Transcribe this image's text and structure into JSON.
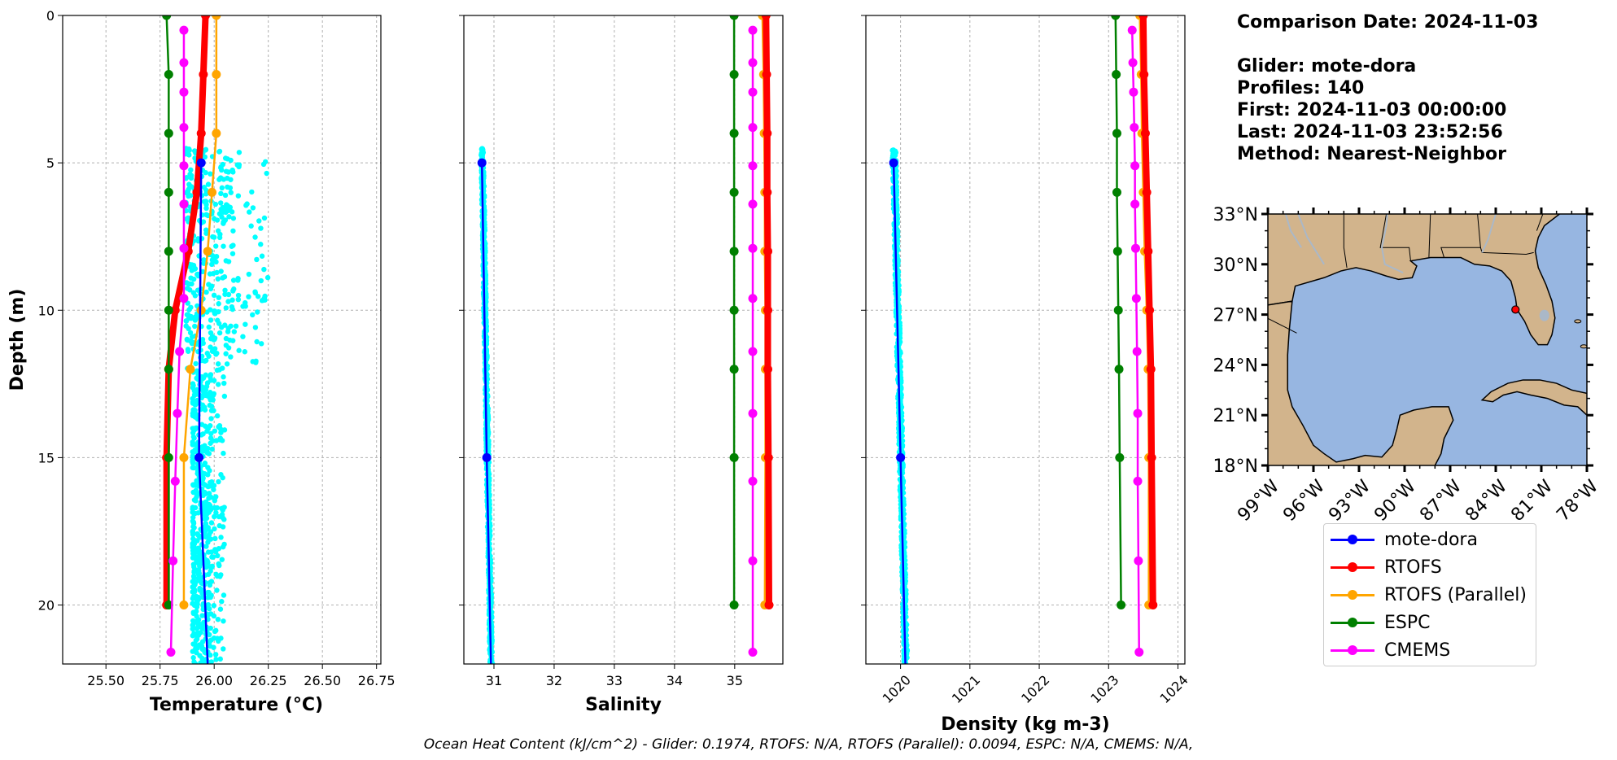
{
  "info": {
    "date": "Comparison Date: 2024-11-03",
    "glider": "Glider: mote-dora",
    "profiles": "Profiles: 140",
    "first": "First: 2024-11-03 00:00:00",
    "last": "Last: 2024-11-03 23:52:56",
    "method": "Method: Nearest-Neighbor"
  },
  "footer": "Ocean Heat Content (kJ/cm^2) - Glider: 0.1974,  RTOFS: N/A,  RTOFS (Parallel): 0.0094,  ESPC: N/A,  CMEMS: N/A,",
  "colors": {
    "glider": "#0000ff",
    "rtofs": "#ff0000",
    "rtofs_parallel": "#ffa500",
    "espc": "#008000",
    "cmems": "#ff00ff",
    "scatter": "#00ffff",
    "land": "#d2b48c",
    "ocean": "#97b6e1"
  },
  "legend": [
    {
      "name": "mote-dora",
      "color": "#0000ff"
    },
    {
      "name": "RTOFS",
      "color": "#ff0000"
    },
    {
      "name": "RTOFS (Parallel)",
      "color": "#ffa500"
    },
    {
      "name": "ESPC",
      "color": "#008000"
    },
    {
      "name": "CMEMS",
      "color": "#ff00ff"
    }
  ],
  "chart_data": [
    {
      "type": "line",
      "xlabel": "Temperature (°C)",
      "ylabel": "Depth (m)",
      "xlim": [
        25.3,
        26.77
      ],
      "ylim": [
        22,
        0
      ],
      "xticks": [
        "25.50",
        "25.75",
        "26.00",
        "26.25",
        "26.50",
        "26.75"
      ],
      "yticks": [
        "0",
        "5",
        "10",
        "15",
        "20"
      ],
      "grid": true,
      "series": [
        {
          "name": "mote-dora",
          "depth": [
            5,
            15,
            22
          ],
          "values": [
            25.94,
            25.93,
            25.97
          ]
        },
        {
          "name": "RTOFS",
          "depth": [
            0,
            2,
            4,
            6,
            8,
            10,
            12,
            15,
            20
          ],
          "values": [
            25.96,
            25.95,
            25.94,
            25.92,
            25.88,
            25.82,
            25.79,
            25.78,
            25.78
          ]
        },
        {
          "name": "RTOFS (Parallel)",
          "depth": [
            0,
            2,
            4,
            6,
            8,
            10,
            12,
            15,
            20
          ],
          "values": [
            26.01,
            26.01,
            26.01,
            25.99,
            25.97,
            25.94,
            25.89,
            25.86,
            25.86
          ]
        },
        {
          "name": "ESPC",
          "depth": [
            0,
            2,
            4,
            6,
            8,
            10,
            12,
            15,
            20
          ],
          "values": [
            25.78,
            25.79,
            25.79,
            25.79,
            25.79,
            25.79,
            25.79,
            25.79,
            25.79
          ]
        },
        {
          "name": "CMEMS",
          "depth": [
            0.5,
            1.6,
            2.6,
            3.8,
            5.1,
            6.4,
            7.9,
            9.6,
            11.4,
            13.5,
            15.8,
            18.5,
            21.6
          ],
          "values": [
            25.86,
            25.86,
            25.86,
            25.86,
            25.86,
            25.86,
            25.86,
            25.86,
            25.84,
            25.83,
            25.82,
            25.81,
            25.8
          ]
        }
      ],
      "scatter": {
        "range": [
          25.85,
          26.27
        ],
        "depth": [
          4.5,
          22
        ]
      }
    },
    {
      "type": "line",
      "xlabel": "Salinity",
      "ylim": [
        22,
        0
      ],
      "xlim": [
        30.5,
        35.8
      ],
      "xticks": [
        "31",
        "32",
        "33",
        "34",
        "35"
      ],
      "grid": true,
      "series": [
        {
          "name": "mote-dora",
          "depth": [
            5,
            15,
            22
          ],
          "values": [
            30.8,
            30.88,
            30.95
          ]
        },
        {
          "name": "RTOFS",
          "depth": [
            0,
            2,
            4,
            6,
            8,
            10,
            12,
            15,
            20
          ],
          "values": [
            35.52,
            35.53,
            35.54,
            35.54,
            35.55,
            35.55,
            35.55,
            35.56,
            35.57
          ]
        },
        {
          "name": "RTOFS (Parallel)",
          "depth": [
            0,
            2,
            4,
            6,
            8,
            10,
            12,
            15,
            20
          ],
          "values": [
            35.46,
            35.48,
            35.49,
            35.5,
            35.5,
            35.51,
            35.51,
            35.51,
            35.5
          ]
        },
        {
          "name": "ESPC",
          "depth": [
            0,
            2,
            4,
            6,
            8,
            10,
            12,
            15,
            20
          ],
          "values": [
            34.99,
            34.99,
            34.99,
            34.99,
            34.99,
            34.99,
            34.99,
            34.99,
            34.99
          ]
        },
        {
          "name": "CMEMS",
          "depth": [
            0.5,
            1.6,
            2.6,
            3.8,
            5.1,
            6.4,
            7.9,
            9.6,
            11.4,
            13.5,
            15.8,
            18.5,
            21.6
          ],
          "values": [
            35.3,
            35.3,
            35.3,
            35.3,
            35.3,
            35.3,
            35.3,
            35.3,
            35.3,
            35.3,
            35.3,
            35.3,
            35.3
          ]
        }
      ],
      "scatter": {
        "range": [
          30.75,
          31.0
        ],
        "depth": [
          4.5,
          22
        ]
      }
    },
    {
      "type": "line",
      "xlabel": "Density (kg m-3)",
      "ylim": [
        22,
        0
      ],
      "xlim": [
        1019.5,
        1024.1
      ],
      "xticks": [
        "1020",
        "1021",
        "1022",
        "1023",
        "1024"
      ],
      "grid": true,
      "series": [
        {
          "name": "mote-dora",
          "depth": [
            5,
            15,
            22
          ],
          "values": [
            1019.9,
            1020.0,
            1020.07
          ]
        },
        {
          "name": "RTOFS",
          "depth": [
            0,
            2,
            4,
            6,
            8,
            10,
            12,
            15,
            20
          ],
          "values": [
            1023.5,
            1023.51,
            1023.53,
            1023.55,
            1023.57,
            1023.59,
            1023.61,
            1023.62,
            1023.64
          ]
        },
        {
          "name": "RTOFS (Parallel)",
          "depth": [
            0,
            2,
            4,
            6,
            8,
            10,
            12,
            15,
            20
          ],
          "values": [
            1023.45,
            1023.47,
            1023.48,
            1023.5,
            1023.52,
            1023.55,
            1023.57,
            1023.58,
            1023.58
          ]
        },
        {
          "name": "ESPC",
          "depth": [
            0,
            2,
            4,
            6,
            8,
            10,
            12,
            15,
            20
          ],
          "values": [
            1023.1,
            1023.11,
            1023.12,
            1023.12,
            1023.13,
            1023.14,
            1023.15,
            1023.16,
            1023.18
          ]
        },
        {
          "name": "CMEMS",
          "depth": [
            0.5,
            1.6,
            2.6,
            3.8,
            5.1,
            6.4,
            7.9,
            9.6,
            11.4,
            13.5,
            15.8,
            18.5,
            21.6
          ],
          "values": [
            1023.34,
            1023.35,
            1023.36,
            1023.37,
            1023.38,
            1023.38,
            1023.39,
            1023.4,
            1023.41,
            1023.42,
            1023.42,
            1023.43,
            1023.44
          ]
        }
      ],
      "scatter": {
        "range": [
          1019.85,
          1020.15
        ],
        "depth": [
          4.5,
          22
        ]
      }
    }
  ],
  "map": {
    "lat_ticks": [
      "18°N",
      "21°N",
      "24°N",
      "27°N",
      "30°N",
      "33°N"
    ],
    "lon_ticks": [
      "99°W",
      "96°W",
      "93°W",
      "90°W",
      "87°W",
      "84°W",
      "81°W",
      "78°W"
    ],
    "glider_position": {
      "lon": -82.7,
      "lat": 27.3
    }
  }
}
